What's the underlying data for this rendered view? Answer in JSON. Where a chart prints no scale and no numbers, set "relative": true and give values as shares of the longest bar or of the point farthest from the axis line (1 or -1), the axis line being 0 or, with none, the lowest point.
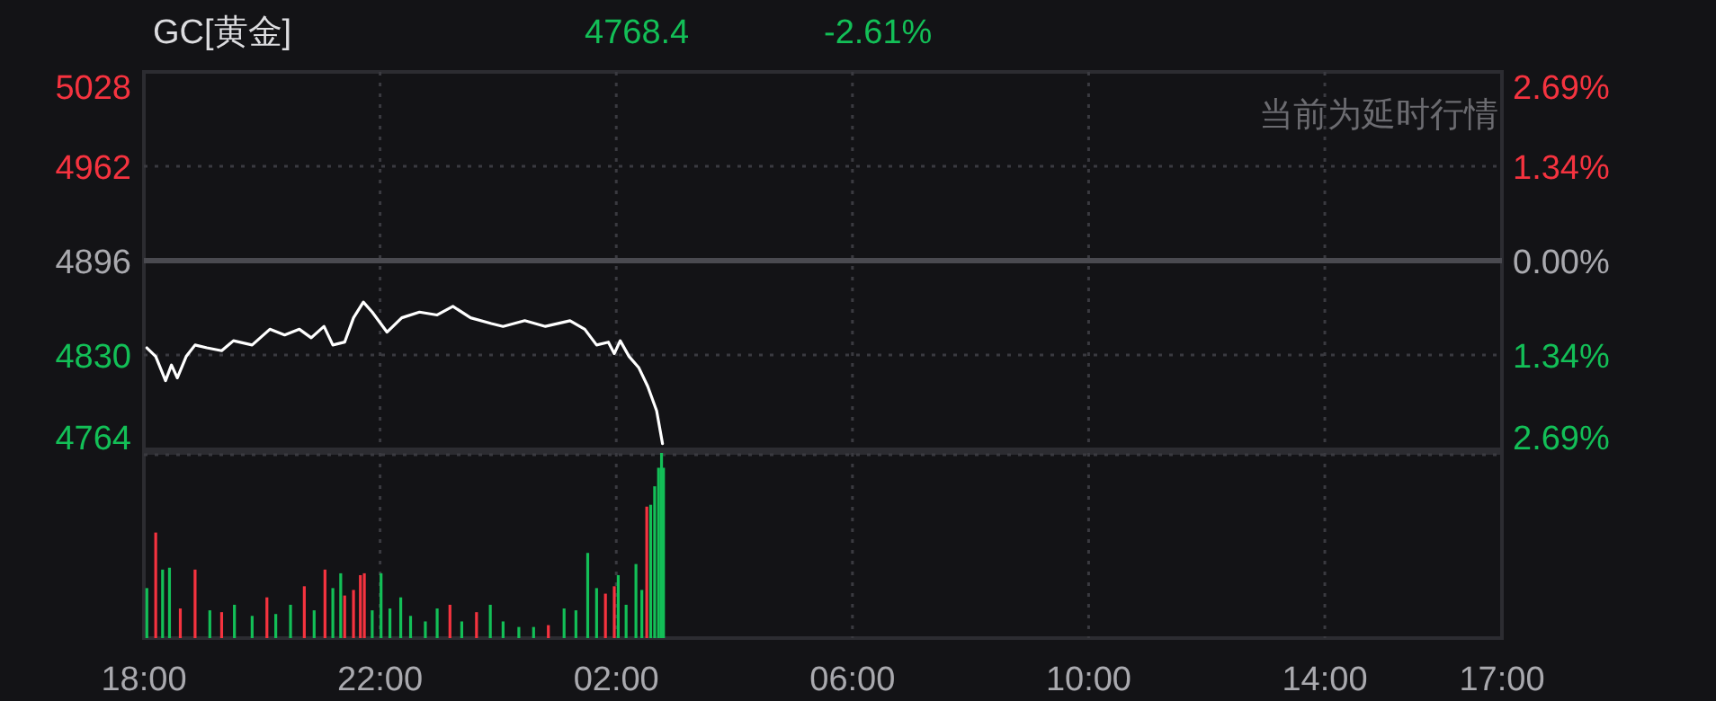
{
  "chart_data": [
    {
      "type": "line",
      "title": "GC[黄金]",
      "annotations": [
        "4768.4",
        "-2.61%",
        "当前为延时行情"
      ],
      "x": [
        "2000-01-01T18:03",
        "2000-01-01T18:12",
        "2000-01-01T18:22",
        "2000-01-01T18:28",
        "2000-01-01T18:34",
        "2000-01-01T18:43",
        "2000-01-01T18:52",
        "2000-01-01T19:04",
        "2000-01-01T19:19",
        "2000-01-01T19:31",
        "2000-01-01T19:50",
        "2000-01-01T20:08",
        "2000-01-01T20:23",
        "2000-01-01T20:38",
        "2000-01-01T20:50",
        "2000-01-01T21:03",
        "2000-01-01T21:12",
        "2000-01-01T21:24",
        "2000-01-01T21:33",
        "2000-01-01T21:43",
        "2000-01-01T21:52",
        "2000-01-01T22:07",
        "2000-01-01T22:22",
        "2000-01-01T22:40",
        "2000-01-01T22:58",
        "2000-01-01T23:14",
        "2000-01-01T23:32",
        "2000-01-01T23:53",
        "2000-01-02T00:05",
        "2000-01-02T00:27",
        "2000-01-02T00:48",
        "2000-01-02T01:13",
        "2000-01-02T01:28",
        "2000-01-02T01:40",
        "2000-01-02T01:52",
        "2000-01-02T01:58",
        "2000-01-02T02:04",
        "2000-01-02T02:13",
        "2000-01-02T02:23",
        "2000-01-02T02:32",
        "2000-01-02T02:41",
        "2000-01-02T02:47"
      ],
      "series": [
        {
          "color": "#ffffff",
          "values": [
            4835,
            4829,
            4812,
            4823,
            4814,
            4829,
            4837,
            4835,
            4833,
            4840,
            4837,
            4848,
            4844,
            4848,
            4842,
            4850,
            4837,
            4839,
            4856,
            4867,
            4860,
            4846,
            4856,
            4860,
            4858,
            4864,
            4856,
            4852,
            4850,
            4854,
            4850,
            4854,
            4848,
            4837,
            4839,
            4831,
            4840,
            4829,
            4821,
            4808,
            4791,
            4768
          ]
        }
      ],
      "xlim": [
        "2000-01-01T18:00",
        "2000-01-02T17:00"
      ],
      "xticks": [
        {
          "value": "2000-01-01T18:00",
          "label": null
        },
        {
          "value": "2000-01-01T22:00",
          "label": null
        },
        {
          "value": "2000-01-02T02:00",
          "label": null
        },
        {
          "value": "2000-01-02T06:00",
          "label": null
        },
        {
          "value": "2000-01-02T10:00",
          "label": null
        },
        {
          "value": "2000-01-02T14:00",
          "label": null
        },
        {
          "value": "2000-01-02T17:00",
          "label": null
        }
      ],
      "ylim": [
        4764,
        5028
      ],
      "yticks": [
        4764,
        4830,
        4896,
        4962,
        5028
      ],
      "y2lim": [
        -2.69,
        2.69
      ],
      "y2ticks": [
        {
          "value": -2.69,
          "label": "2.69%"
        },
        {
          "value": -1.34,
          "label": "1.34%"
        },
        {
          "value": 0,
          "label": "0.00%"
        },
        {
          "value": 1.34,
          "label": "1.34%"
        },
        {
          "value": 2.69,
          "label": "2.69%"
        }
      ],
      "ref_lines": [
        {
          "axis": "y",
          "value": 4896,
          "color": "#4a4a50"
        }
      ],
      "grid": true,
      "tick_labels": "y"
    },
    {
      "type": "bar",
      "relative": true,
      "x": [
        "2000-01-01T18:03",
        "2000-01-01T18:12",
        "2000-01-01T18:19",
        "2000-01-01T18:26",
        "2000-01-01T18:37",
        "2000-01-01T18:52",
        "2000-01-01T19:07",
        "2000-01-01T19:19",
        "2000-01-01T19:32",
        "2000-01-01T19:50",
        "2000-01-01T20:05",
        "2000-01-01T20:14",
        "2000-01-01T20:29",
        "2000-01-01T20:43",
        "2000-01-01T20:53",
        "2000-01-01T21:04",
        "2000-01-01T21:12",
        "2000-01-01T21:20",
        "2000-01-01T21:24",
        "2000-01-01T21:33",
        "2000-01-01T21:40",
        "2000-01-01T21:44",
        "2000-01-01T21:52",
        "2000-01-01T22:01",
        "2000-01-01T22:10",
        "2000-01-01T22:21",
        "2000-01-01T22:31",
        "2000-01-01T22:46",
        "2000-01-01T22:58",
        "2000-01-01T23:11",
        "2000-01-01T23:23",
        "2000-01-01T23:38",
        "2000-01-01T23:52",
        "2000-01-02T00:05",
        "2000-01-02T00:21",
        "2000-01-02T00:36",
        "2000-01-02T00:51",
        "2000-01-02T01:07",
        "2000-01-02T01:19",
        "2000-01-02T01:31",
        "2000-01-02T01:40",
        "2000-01-02T01:49",
        "2000-01-02T01:58",
        "2000-01-02T02:02",
        "2000-01-02T02:10",
        "2000-01-02T02:20",
        "2000-01-02T02:26",
        "2000-01-02T02:31",
        "2000-01-02T02:35",
        "2000-01-02T02:39",
        "2000-01-02T02:43",
        "2000-01-02T02:46",
        "2000-01-02T02:48"
      ],
      "values": [
        0.27,
        0.57,
        0.37,
        0.38,
        0.16,
        0.37,
        0.15,
        0.14,
        0.18,
        0.12,
        0.22,
        0.13,
        0.18,
        0.28,
        0.15,
        0.37,
        0.27,
        0.35,
        0.23,
        0.26,
        0.34,
        0.35,
        0.15,
        0.35,
        0.16,
        0.22,
        0.12,
        0.09,
        0.16,
        0.18,
        0.09,
        0.14,
        0.18,
        0.09,
        0.06,
        0.06,
        0.07,
        0.16,
        0.15,
        0.46,
        0.27,
        0.24,
        0.28,
        0.34,
        0.18,
        0.4,
        0.26,
        0.71,
        0.72,
        0.82,
        0.92,
        1,
        0.92
      ],
      "colors": [
        "#13bf57",
        "#f5333f",
        "#13bf57",
        "#13bf57",
        "#f5333f",
        "#f5333f",
        "#13bf57",
        "#f5333f",
        "#13bf57",
        "#13bf57",
        "#f5333f",
        "#13bf57",
        "#13bf57",
        "#f5333f",
        "#13bf57",
        "#f5333f",
        "#13bf57",
        "#13bf57",
        "#f5333f",
        "#f5333f",
        "#f5333f",
        "#f5333f",
        "#13bf57",
        "#13bf57",
        "#13bf57",
        "#13bf57",
        "#13bf57",
        "#13bf57",
        "#13bf57",
        "#f5333f",
        "#13bf57",
        "#f5333f",
        "#13bf57",
        "#13bf57",
        "#13bf57",
        "#13bf57",
        "#f5333f",
        "#13bf57",
        "#13bf57",
        "#13bf57",
        "#13bf57",
        "#f5333f",
        "#f5333f",
        "#13bf57",
        "#13bf57",
        "#13bf57",
        "#13bf57",
        "#f5333f",
        "#13bf57",
        "#13bf57",
        "#13bf57",
        "#13bf57",
        "#13bf57"
      ],
      "xlim": [
        "2000-01-01T18:00",
        "2000-01-02T17:00"
      ],
      "xticks": [
        {
          "value": "2000-01-01T18:00",
          "label": "18:00"
        },
        {
          "value": "2000-01-01T22:00",
          "label": "22:00"
        },
        {
          "value": "2000-01-02T02:00",
          "label": "02:00"
        },
        {
          "value": "2000-01-02T06:00",
          "label": "06:00"
        },
        {
          "value": "2000-01-02T10:00",
          "label": "10:00"
        },
        {
          "value": "2000-01-02T14:00",
          "label": "14:00"
        },
        {
          "value": "2000-01-02T17:00",
          "label": "17:00"
        }
      ],
      "grid": "x",
      "tick_labels": "x"
    }
  ]
}
